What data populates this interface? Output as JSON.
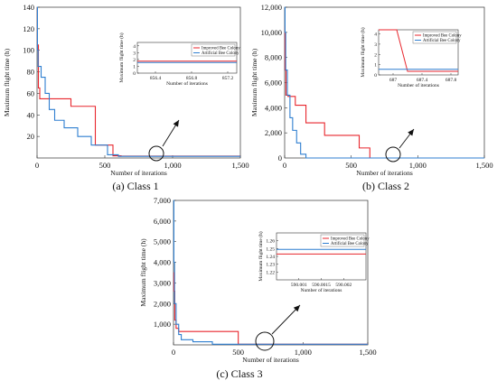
{
  "chart_data": [
    {
      "type": "line",
      "caption": "(a) Class 1",
      "xlabel": "Number of iterations",
      "ylabel": "Maximum flight time (h)",
      "xlim": [
        0,
        1500
      ],
      "ylim": [
        0,
        140
      ],
      "xticks": [
        0,
        500,
        1000,
        1500
      ],
      "xtick_labels": [
        "0",
        "500",
        "1,000",
        "1,500"
      ],
      "yticks": [
        20,
        40,
        60,
        80,
        100,
        120,
        140
      ],
      "ytick_labels": [
        "20",
        "40",
        "60",
        "80",
        "100",
        "120",
        "140"
      ],
      "series": [
        {
          "name": "Improved Bee Colony",
          "color": "#e8262d",
          "x": [
            0,
            3,
            3,
            10,
            10,
            20,
            20,
            60,
            60,
            250,
            250,
            430,
            430,
            560,
            560,
            620,
            620,
            1500
          ],
          "y": [
            140,
            140,
            105,
            105,
            65,
            65,
            55,
            55,
            55,
            55,
            48,
            48,
            12,
            12,
            2,
            2,
            1.7,
            1.7
          ]
        },
        {
          "name": "Artificial Bee Colony",
          "color": "#2f7fd0",
          "x": [
            0,
            3,
            3,
            8,
            8,
            30,
            30,
            60,
            60,
            90,
            90,
            130,
            130,
            200,
            200,
            300,
            300,
            400,
            400,
            520,
            520,
            600,
            600,
            1500
          ],
          "y": [
            140,
            140,
            100,
            100,
            85,
            85,
            75,
            75,
            60,
            60,
            45,
            45,
            35,
            35,
            28,
            28,
            20,
            20,
            12,
            12,
            3,
            3,
            1.5,
            1.5
          ]
        }
      ],
      "inset": {
        "xlabel": "Number of iterations",
        "ylabel": "Maximum flight time (h)",
        "xlim": [
          856.2,
          857.3
        ],
        "ylim": [
          0,
          4.5
        ],
        "xticks": [
          856.4,
          856.8,
          857.2
        ],
        "xtick_labels": [
          "856.4",
          "856.8",
          "857.2"
        ],
        "yticks": [
          0,
          1,
          2,
          3,
          4
        ],
        "ytick_labels": [
          "0",
          "1",
          "2",
          "3",
          "4"
        ],
        "legend": [
          "Improved Bee Colony",
          "Artificial Bee Colony"
        ],
        "series": [
          {
            "name": "Improved Bee Colony",
            "y": 1.75
          },
          {
            "name": "Artificial Bee Colony",
            "y": 1.55
          }
        ]
      }
    },
    {
      "type": "line",
      "caption": "(b) Class 2",
      "xlabel": "Number of iterations",
      "ylabel": "Maximum flight time (h)",
      "xlim": [
        0,
        1500
      ],
      "ylim": [
        0,
        12000
      ],
      "xticks": [
        0,
        500,
        1000,
        1500
      ],
      "xtick_labels": [
        "0",
        "500",
        "1,000",
        "1,500"
      ],
      "yticks": [
        2000,
        4000,
        6000,
        8000,
        10000,
        12000
      ],
      "ytick_labels": [
        "2,000",
        "4,000",
        "6,000",
        "8,000",
        "10,000",
        "12,000"
      ],
      "extra_ytick": {
        "value": 0,
        "label": "0"
      },
      "series": [
        {
          "name": "Improved Bee Colony",
          "color": "#e8262d",
          "x": [
            0,
            3,
            3,
            10,
            10,
            25,
            25,
            80,
            80,
            160,
            160,
            300,
            300,
            560,
            560,
            640,
            640,
            1500
          ],
          "y": [
            10500,
            10500,
            7000,
            7000,
            5000,
            5000,
            4900,
            4900,
            4200,
            4200,
            2800,
            2800,
            1800,
            1800,
            800,
            800,
            0,
            0
          ]
        },
        {
          "name": "Artificial Bee Colony",
          "color": "#2f7fd0",
          "x": [
            0,
            3,
            3,
            8,
            8,
            20,
            20,
            40,
            40,
            60,
            60,
            90,
            90,
            120,
            120,
            160,
            160,
            1500
          ],
          "y": [
            12000,
            12000,
            10000,
            10000,
            7000,
            7000,
            5000,
            5000,
            3200,
            3200,
            2200,
            2200,
            1200,
            1200,
            300,
            300,
            0,
            0
          ]
        }
      ],
      "inset": {
        "xlabel": "Number of iterations",
        "ylabel": "Maximum flight time (h)",
        "xlim": [
          686.8,
          687.9
        ],
        "ylim": [
          0,
          4.4
        ],
        "xticks": [
          687,
          687.4,
          687.8
        ],
        "xtick_labels": [
          "687",
          "687.4",
          "687.8"
        ],
        "yticks": [
          0,
          1,
          2,
          3,
          4
        ],
        "ytick_labels": [
          "0",
          "1",
          "2",
          "3",
          "4"
        ],
        "legend": [
          "Improved Bee Colony",
          "Artificial Bee Colony"
        ],
        "series": [
          {
            "name": "Improved Bee Colony",
            "x": [
              686.8,
              687.05,
              687.2,
              687.9
            ],
            "y": [
              4.4,
              4.4,
              0.35,
              0.35
            ]
          },
          {
            "name": "Artificial Bee Colony",
            "x": [
              686.8,
              687.9
            ],
            "y": [
              0.55,
              0.55
            ]
          }
        ]
      }
    },
    {
      "type": "line",
      "caption": "(c) Class 3",
      "xlabel": "Number of iterations",
      "ylabel": "Maximum flight time (h)",
      "xlim": [
        0,
        1500
      ],
      "ylim": [
        0,
        7000
      ],
      "xticks": [
        0,
        500,
        1000,
        1500
      ],
      "xtick_labels": [
        "0",
        "500",
        "1,000",
        "1,500"
      ],
      "yticks": [
        1000,
        2000,
        3000,
        4000,
        5000,
        6000,
        7000
      ],
      "ytick_labels": [
        "1,000",
        "2,000",
        "3,000",
        "4,000",
        "5,000",
        "6,000",
        "7,000"
      ],
      "series": [
        {
          "name": "Improved Bee Colony",
          "color": "#e8262d",
          "x": [
            0,
            3,
            3,
            10,
            10,
            20,
            20,
            40,
            40,
            500,
            500,
            1500
          ],
          "y": [
            3500,
            3500,
            2600,
            2600,
            1200,
            1200,
            800,
            800,
            650,
            650,
            30,
            30
          ]
        },
        {
          "name": "Artificial Bee Colony",
          "color": "#2f7fd0",
          "x": [
            0,
            3,
            3,
            8,
            8,
            20,
            20,
            40,
            40,
            60,
            60,
            150,
            150,
            300,
            300,
            1500
          ],
          "y": [
            7000,
            7000,
            4000,
            4000,
            2000,
            2000,
            1000,
            1000,
            500,
            500,
            250,
            250,
            150,
            150,
            30,
            30
          ]
        }
      ],
      "inset": {
        "xlabel": "Number of iterations",
        "ylabel": "Maximum flight time (h)",
        "xlim": [
          590.0005,
          590.0025
        ],
        "ylim": [
          1.21,
          1.27
        ],
        "xticks": [
          590.001,
          590.0015,
          590.002
        ],
        "xtick_labels": [
          "590.001",
          "590.0015",
          "590.002"
        ],
        "yticks": [
          1.22,
          1.23,
          1.24,
          1.25,
          1.26
        ],
        "ytick_labels": [
          "1.22",
          "1.23",
          "1.24",
          "1.25",
          "1.26"
        ],
        "legend": [
          "Improved Bee Colony",
          "Artificial Bee Colony"
        ],
        "series": [
          {
            "name": "Improved Bee Colony",
            "y": 1.243
          },
          {
            "name": "Artificial Bee Colony",
            "y": 1.249
          }
        ]
      }
    }
  ]
}
